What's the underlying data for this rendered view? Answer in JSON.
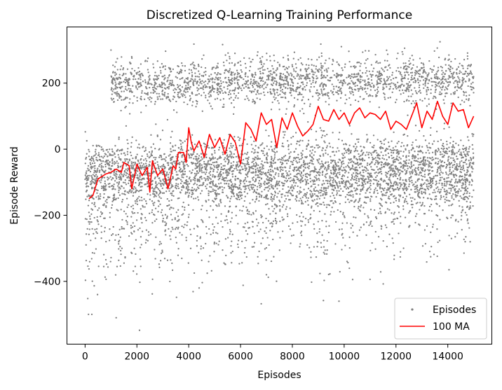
{
  "chart_data": {
    "type": "scatter",
    "title": "Discretized Q-Learning Training Performance",
    "xlabel": "Episodes",
    "ylabel": "Episode Reward",
    "xlim": [
      -700,
      15700
    ],
    "ylim": [
      -590,
      370
    ],
    "xticks": [
      0,
      2000,
      4000,
      6000,
      8000,
      10000,
      12000,
      14000
    ],
    "yticks": [
      -400,
      -200,
      0,
      200
    ],
    "grid": false,
    "legend_position": "lower-right",
    "series": [
      {
        "name": "Episodes",
        "kind": "scatter",
        "color": "#808080",
        "n_points": 15000,
        "x_range": [
          0,
          15000
        ],
        "clusters": [
          {
            "x": [
              0,
              15000
            ],
            "center_start": -70,
            "center_end": -50,
            "spread": 45,
            "share": 0.48
          },
          {
            "x": [
              1000,
              15000
            ],
            "center_start": 195,
            "center_end": 212,
            "spread": 35,
            "share": 0.3
          },
          {
            "x": [
              0,
              15000
            ],
            "center_start": -220,
            "center_end": -120,
            "spread": 90,
            "share": 0.22
          }
        ],
        "outliers": [
          [
            130,
            -500
          ],
          [
            260,
            -500
          ],
          [
            480,
            -440
          ],
          [
            1200,
            -510
          ],
          [
            2100,
            -548
          ],
          [
            6800,
            -468
          ],
          [
            9200,
            -458
          ],
          [
            9800,
            -460
          ],
          [
            11000,
            -394
          ],
          [
            7000,
            -380
          ],
          [
            4400,
            -420
          ],
          [
            6100,
            -412
          ],
          [
            1000,
            300
          ],
          [
            1800,
            280
          ],
          [
            4200,
            318
          ],
          [
            13700,
            325
          ],
          [
            9100,
            318
          ]
        ]
      },
      {
        "name": "100 MA",
        "kind": "line",
        "color": "#ff0000",
        "x": [
          150,
          300,
          500,
          800,
          1000,
          1200,
          1400,
          1500,
          1700,
          1800,
          2000,
          2200,
          2400,
          2500,
          2600,
          2800,
          3000,
          3200,
          3400,
          3500,
          3600,
          3800,
          3900,
          4000,
          4100,
          4200,
          4400,
          4600,
          4800,
          5000,
          5200,
          5400,
          5600,
          5800,
          6000,
          6200,
          6400,
          6600,
          6800,
          7000,
          7200,
          7400,
          7600,
          7800,
          8000,
          8200,
          8400,
          8600,
          8800,
          9000,
          9200,
          9400,
          9600,
          9800,
          10000,
          10200,
          10400,
          10600,
          10800,
          11000,
          11200,
          11400,
          11600,
          11800,
          12000,
          12200,
          12400,
          12600,
          12800,
          13000,
          13200,
          13400,
          13600,
          13800,
          14000,
          14200,
          14400,
          14600,
          14800,
          15000
        ],
        "y": [
          -150,
          -140,
          -90,
          -75,
          -70,
          -60,
          -70,
          -40,
          -50,
          -120,
          -45,
          -80,
          -55,
          -130,
          -35,
          -80,
          -60,
          -120,
          -50,
          -60,
          -10,
          -10,
          -40,
          65,
          20,
          -5,
          25,
          -25,
          45,
          5,
          35,
          -15,
          45,
          20,
          -45,
          80,
          60,
          25,
          110,
          75,
          90,
          5,
          95,
          60,
          110,
          70,
          40,
          55,
          75,
          130,
          90,
          85,
          120,
          90,
          110,
          75,
          110,
          125,
          95,
          110,
          105,
          90,
          115,
          60,
          85,
          75,
          60,
          100,
          140,
          65,
          115,
          90,
          145,
          100,
          75,
          140,
          115,
          120,
          65,
          100
        ]
      }
    ]
  }
}
